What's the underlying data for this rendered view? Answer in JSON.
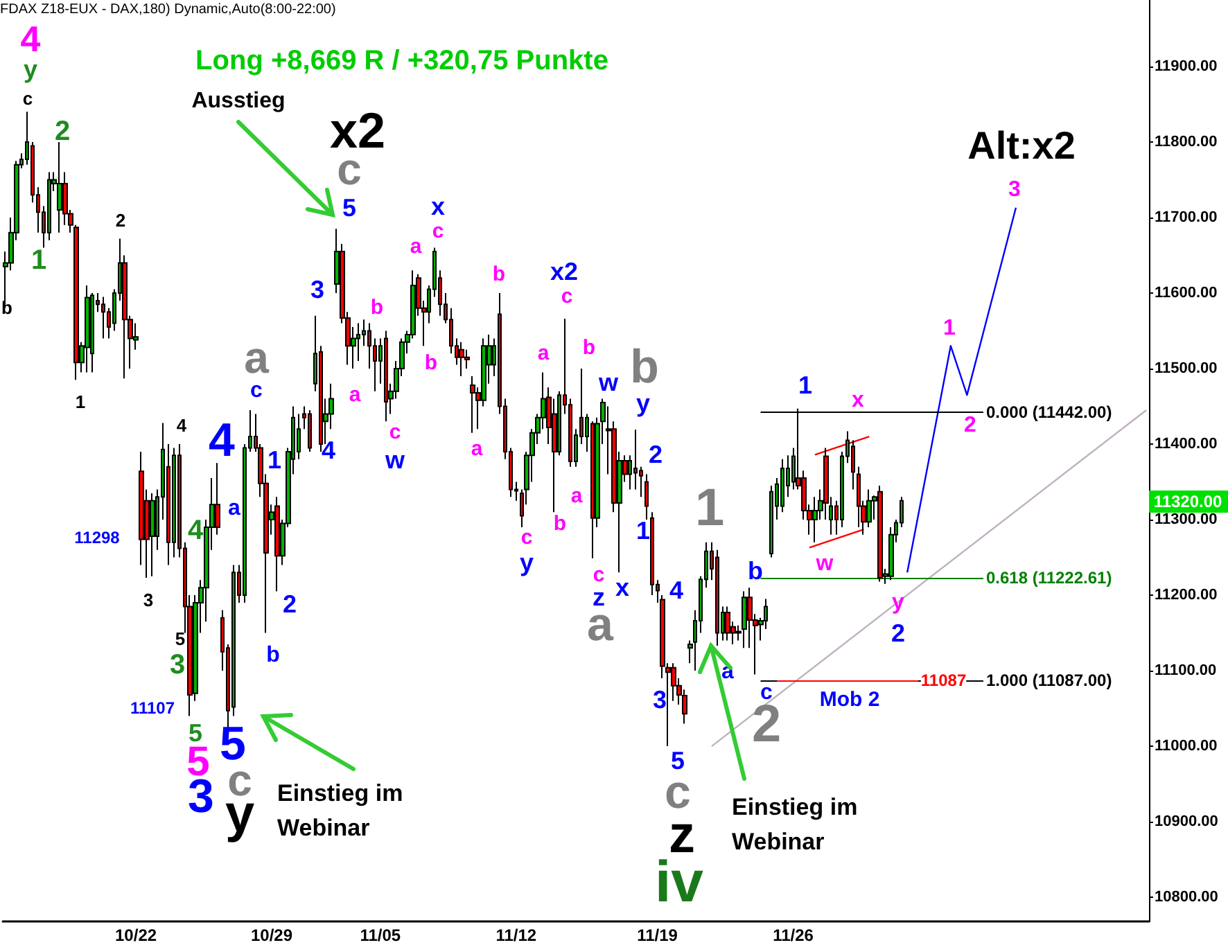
{
  "chart_data": {
    "type": "candlestick",
    "title": "Long +8,669 R / +320,75 Punkte",
    "subtitle": "FDAX Z18-EUX - DAX,180) Dynamic,Auto(8:00-22:00)",
    "categories": [
      null,
      null,
      null,
      null,
      null,
      null,
      null,
      null,
      null,
      null,
      null,
      null,
      null,
      null,
      null,
      null,
      null,
      null,
      null,
      null,
      null,
      null,
      null,
      null,
      "10/22",
      null,
      null,
      null,
      null,
      null,
      null,
      null,
      null,
      null,
      null,
      null,
      null,
      null,
      null,
      null,
      null,
      null,
      null,
      null,
      null,
      null,
      null,
      null,
      null,
      "10/29",
      null,
      null,
      null,
      null,
      null,
      null,
      null,
      null,
      null,
      null,
      null,
      null,
      null,
      null,
      null,
      null,
      null,
      null,
      null,
      "11/05",
      null,
      null,
      null,
      null,
      null,
      null,
      null,
      null,
      null,
      null,
      null,
      null,
      null,
      null,
      null,
      null,
      null,
      null,
      null,
      null,
      null,
      null,
      null,
      null,
      "11/12",
      null,
      null,
      null,
      null,
      null,
      null,
      null,
      null,
      null,
      null,
      null,
      null,
      null,
      null,
      null,
      null,
      null,
      null,
      null,
      null,
      null,
      null,
      null,
      null,
      null,
      "11/19",
      null,
      null,
      null,
      null,
      null,
      null,
      null,
      null,
      null,
      null,
      null,
      null,
      null,
      null,
      null,
      null,
      null,
      null,
      null,
      null,
      null,
      null,
      null,
      null,
      "11/26",
      null,
      null,
      null,
      null,
      null,
      null,
      null,
      null,
      null,
      null,
      null,
      null,
      null,
      null,
      null,
      null,
      null,
      null,
      null,
      null,
      null,
      null,
      null,
      null,
      null,
      null,
      null,
      null,
      null,
      null,
      null,
      null,
      null,
      null,
      null,
      null,
      null,
      null,
      null,
      null,
      null,
      null,
      null,
      null,
      null,
      null,
      null,
      null,
      null,
      null,
      null,
      null,
      null,
      null,
      null,
      null,
      null,
      null,
      null,
      null,
      null,
      null,
      null,
      null,
      null
    ],
    "colors": [
      "#00b400",
      "#ff0000"
    ],
    "series": [
      {
        "ohlc": [
          [
            11635,
            11655,
            11580,
            11640
          ],
          [
            11640,
            11700,
            11630,
            11680
          ],
          [
            11680,
            11775,
            11670,
            11770
          ],
          [
            11770,
            11785,
            11765,
            11777
          ],
          [
            11777,
            11840,
            11770,
            11800
          ],
          [
            11795,
            11800,
            11720,
            11730
          ],
          [
            11730,
            11740,
            11680,
            11707
          ],
          [
            11707,
            11715,
            11660,
            11680
          ],
          [
            11680,
            11760,
            11670,
            11750
          ],
          [
            11745,
            11760,
            11735,
            11750
          ],
          [
            11710,
            11800,
            11680,
            11745
          ],
          [
            11745,
            11760,
            11690,
            11705
          ],
          [
            11705,
            11710,
            11680,
            11690
          ],
          [
            11687,
            11690,
            11485,
            11508
          ],
          [
            11508,
            11535,
            11495,
            11530
          ],
          [
            11528,
            11610,
            11495,
            11594
          ],
          [
            11520,
            11600,
            11495,
            11597
          ],
          [
            11590,
            11600,
            11575,
            11585
          ],
          [
            11585,
            11595,
            11540,
            11575
          ],
          [
            11575,
            11580,
            11540,
            11555
          ],
          [
            11560,
            11605,
            11550,
            11600
          ],
          [
            11600,
            11672,
            11590,
            11640
          ],
          [
            11640,
            11650,
            11487,
            11565
          ],
          [
            11565,
            11570,
            11500,
            11540
          ],
          [
            11538,
            11560,
            11525,
            11542
          ],
          [
            11364,
            11390,
            11240,
            11274
          ],
          [
            11325,
            11340,
            11223,
            11274
          ],
          [
            11278,
            11335,
            11225,
            11325
          ],
          [
            11278,
            11340,
            11260,
            11330
          ],
          [
            11330,
            11428,
            11300,
            11393
          ],
          [
            11370,
            11400,
            11240,
            11270
          ],
          [
            11270,
            11395,
            11250,
            11385
          ],
          [
            11385,
            11400,
            11250,
            11262
          ],
          [
            11262,
            11270,
            11150,
            11185
          ],
          [
            11185,
            11200,
            11040,
            11068
          ],
          [
            11070,
            11200,
            11060,
            11190
          ],
          [
            11190,
            11220,
            11150,
            11210
          ],
          [
            11210,
            11300,
            11165,
            11290
          ],
          [
            11290,
            11355,
            11260,
            11320
          ],
          [
            11320,
            11375,
            11280,
            11290
          ],
          [
            11170,
            11180,
            11100,
            11125
          ],
          [
            11130,
            11135,
            11020,
            11047
          ],
          [
            11052,
            11240,
            11040,
            11230
          ],
          [
            11230,
            11240,
            11190,
            11200
          ],
          [
            11200,
            11400,
            11190,
            11395
          ],
          [
            11395,
            11445,
            11390,
            11410
          ],
          [
            11410,
            11440,
            11390,
            11395
          ],
          [
            11395,
            11400,
            11330,
            11348
          ],
          [
            11348,
            11360,
            11150,
            11256
          ],
          [
            11300,
            11320,
            11280,
            11310
          ],
          [
            11318,
            11330,
            11205,
            11252
          ],
          [
            11252,
            11300,
            11240,
            11295
          ],
          [
            11295,
            11395,
            11290,
            11390
          ],
          [
            11380,
            11450,
            11360,
            11435
          ],
          [
            11390,
            11440,
            11380,
            11420
          ],
          [
            11440,
            11450,
            11420,
            11435
          ],
          [
            11440,
            11445,
            11390,
            11395
          ],
          [
            11480,
            11570,
            11470,
            11520
          ],
          [
            11522,
            11530,
            11390,
            11400
          ],
          [
            11430,
            11460,
            11400,
            11440
          ],
          [
            11440,
            11480,
            11420,
            11460
          ],
          [
            11612,
            11685,
            11600,
            11655
          ],
          [
            11655,
            11665,
            11560,
            11567
          ],
          [
            11567,
            11575,
            11505,
            11530
          ],
          [
            11530,
            11555,
            11500,
            11540
          ],
          [
            11540,
            11560,
            11510,
            11545
          ],
          [
            11545,
            11565,
            11530,
            11550
          ],
          [
            11550,
            11560,
            11500,
            11530
          ],
          [
            11530,
            11540,
            11470,
            11510
          ],
          [
            11510,
            11540,
            11480,
            11530
          ],
          [
            11540,
            11550,
            11430,
            11456
          ],
          [
            11460,
            11480,
            11440,
            11470
          ],
          [
            11470,
            11510,
            11460,
            11500
          ],
          [
            11500,
            11540,
            11490,
            11535
          ],
          [
            11535,
            11550,
            11520,
            11545
          ],
          [
            11545,
            11630,
            11540,
            11610
          ],
          [
            11620,
            11625,
            11570,
            11580
          ],
          [
            11580,
            11590,
            11530,
            11575
          ],
          [
            11575,
            11610,
            11560,
            11605
          ],
          [
            11605,
            11660,
            11595,
            11655
          ],
          [
            11620,
            11630,
            11570,
            11585
          ],
          [
            11585,
            11600,
            11560,
            11565
          ],
          [
            11565,
            11580,
            11520,
            11530
          ],
          [
            11530,
            11540,
            11505,
            11515
          ],
          [
            11525,
            11535,
            11490,
            11515
          ],
          [
            11515,
            11525,
            11500,
            11512
          ],
          [
            11478,
            11490,
            11415,
            11468
          ],
          [
            11468,
            11475,
            11420,
            11458
          ],
          [
            11458,
            11540,
            11450,
            11530
          ],
          [
            11505,
            11545,
            11480,
            11530
          ],
          [
            11505,
            11540,
            11490,
            11530
          ],
          [
            11572,
            11600,
            11440,
            11450
          ],
          [
            11450,
            11460,
            11380,
            11390
          ],
          [
            11390,
            11395,
            11330,
            11340
          ],
          [
            11340,
            11350,
            11325,
            11338
          ],
          [
            11335,
            11340,
            11290,
            11305
          ],
          [
            11340,
            11390,
            11320,
            11385
          ],
          [
            11385,
            11420,
            11350,
            11415
          ],
          [
            11415,
            11440,
            11400,
            11435
          ],
          [
            11435,
            11495,
            11420,
            11460
          ],
          [
            11462,
            11475,
            11400,
            11422
          ],
          [
            11440,
            11460,
            11310,
            11390
          ],
          [
            11390,
            11470,
            11385,
            11465
          ],
          [
            11465,
            11566,
            11440,
            11452
          ],
          [
            11452,
            11460,
            11370,
            11377
          ],
          [
            11377,
            11420,
            11370,
            11412
          ],
          [
            11435,
            11500,
            11400,
            11410
          ],
          [
            11410,
            11440,
            11390,
            11435
          ],
          [
            11427,
            11430,
            11249,
            11302
          ],
          [
            11302,
            11435,
            11290,
            11427
          ],
          [
            11430,
            11460,
            11400,
            11455
          ],
          [
            11420,
            11450,
            11360,
            11418
          ],
          [
            11420,
            11430,
            11310,
            11322
          ],
          [
            11322,
            11390,
            11230,
            11378
          ],
          [
            11378,
            11385,
            11350,
            11360
          ],
          [
            11360,
            11385,
            11340,
            11378
          ],
          [
            11368,
            11419,
            11340,
            11362
          ],
          [
            11365,
            11370,
            11330,
            11358
          ],
          [
            11350,
            11360,
            11300,
            11318
          ],
          [
            11302,
            11310,
            11200,
            11214
          ],
          [
            11214,
            11220,
            11190,
            11206
          ],
          [
            11194,
            11200,
            11090,
            11106
          ],
          [
            11104,
            11110,
            11000,
            11098
          ],
          [
            11104,
            11110,
            11060,
            11080
          ],
          [
            11080,
            11090,
            11055,
            11068
          ],
          [
            11067,
            11075,
            11030,
            11043
          ],
          [
            11130,
            11140,
            11110,
            11135
          ],
          [
            11138,
            11180,
            11100,
            11166
          ],
          [
            11166,
            11225,
            11150,
            11221
          ],
          [
            11221,
            11270,
            11210,
            11258
          ],
          [
            11258,
            11270,
            11220,
            11235
          ],
          [
            11250,
            11260,
            11133,
            11150
          ],
          [
            11150,
            11185,
            11140,
            11177
          ],
          [
            11177,
            11185,
            11140,
            11150
          ],
          [
            11158,
            11165,
            11135,
            11150
          ],
          [
            11150,
            11160,
            11140,
            11152
          ],
          [
            11155,
            11205,
            11130,
            11197
          ],
          [
            11197,
            11210,
            11130,
            11167
          ],
          [
            11167,
            11175,
            11095,
            11160
          ],
          [
            11161,
            11170,
            11140,
            11166
          ],
          [
            11166,
            11195,
            11155,
            11185
          ],
          [
            11255,
            11345,
            11250,
            11337
          ],
          [
            11318,
            11355,
            11300,
            11347
          ],
          [
            11318,
            11380,
            11310,
            11368
          ],
          [
            11345,
            11385,
            11330,
            11368
          ],
          [
            11350,
            11395,
            11340,
            11384
          ],
          [
            11355,
            11447,
            11340,
            11345
          ],
          [
            11355,
            11365,
            11300,
            11312
          ],
          [
            11312,
            11320,
            11280,
            11300
          ],
          [
            11300,
            11330,
            11270,
            11312
          ],
          [
            11312,
            11340,
            11300,
            11325
          ],
          [
            11384,
            11395,
            11300,
            11322
          ],
          [
            11300,
            11330,
            11280,
            11318
          ],
          [
            11318,
            11325,
            11280,
            11300
          ],
          [
            11300,
            11390,
            11290,
            11384
          ],
          [
            11384,
            11417,
            11375,
            11405
          ],
          [
            11397,
            11405,
            11340,
            11363
          ],
          [
            11360,
            11370,
            11290,
            11318
          ],
          [
            11318,
            11325,
            11280,
            11297
          ],
          [
            11297,
            11340,
            11290,
            11325
          ],
          [
            11325,
            11332,
            11300,
            11330
          ],
          [
            11337,
            11345,
            11218,
            11223
          ],
          [
            11225,
            11235,
            11215,
            11228
          ],
          [
            11225,
            11290,
            11220,
            11280
          ],
          [
            11280,
            11300,
            11270,
            11296
          ],
          [
            11296,
            11330,
            11290,
            11325
          ],
          null,
          null,
          null,
          null,
          null,
          null,
          null,
          null,
          null,
          null,
          null,
          null,
          null,
          null,
          null,
          null,
          null,
          null,
          null,
          null,
          null,
          null,
          null,
          null,
          null,
          null,
          null,
          null,
          null,
          null,
          null,
          null,
          null,
          null,
          null,
          null,
          null,
          null,
          null,
          null,
          null,
          null,
          null,
          null,
          null
        ]
      },
      {
        "type": "line",
        "color": "#0000ff",
        "values": [
          null,
          null,
          null,
          null,
          null,
          null,
          null,
          null,
          null,
          null,
          null,
          null,
          null,
          null,
          null,
          null,
          null,
          null,
          null,
          null,
          null,
          null,
          null,
          null,
          null,
          null,
          null,
          null,
          null,
          null,
          null,
          null,
          null,
          null,
          null,
          null,
          null,
          null,
          null,
          null,
          null,
          null,
          null,
          null,
          null,
          null,
          null,
          null,
          null,
          null,
          null,
          null,
          null,
          null,
          null,
          null,
          null,
          null,
          null,
          null,
          null,
          null,
          null,
          null,
          null,
          null,
          null,
          null,
          null,
          null,
          null,
          null,
          null,
          null,
          null,
          null,
          null,
          null,
          null,
          null,
          null,
          null,
          null,
          null,
          null,
          null,
          null,
          null,
          null,
          null,
          null,
          null,
          null,
          null,
          null,
          null,
          null,
          null,
          null,
          null,
          null,
          null,
          null,
          null,
          null,
          null,
          null,
          null,
          null,
          null,
          null,
          null,
          null,
          null,
          null,
          null,
          null,
          null,
          null,
          null,
          null,
          null,
          null,
          null,
          null,
          null,
          null,
          null,
          null,
          null,
          null,
          null,
          null,
          null,
          null,
          null,
          null,
          null,
          null,
          null,
          null,
          null,
          null,
          null,
          null,
          null,
          null,
          null,
          null,
          null,
          null,
          null,
          null,
          null,
          null,
          null,
          null,
          null,
          null,
          null,
          null,
          null,
          null,
          null,
          null,
          null,
          11230,
          null,
          null,
          null,
          null,
          null,
          null,
          null,
          11530,
          null,
          null,
          11465,
          null,
          null,
          null,
          null,
          null,
          null,
          null,
          null,
          11713,
          null,
          null,
          null,
          null,
          null,
          null,
          null,
          null,
          null,
          null,
          null,
          null,
          null,
          null,
          null,
          null,
          null,
          null,
          null,
          null,
          null,
          null,
          null,
          null
        ]
      },
      {
        "type": "line",
        "color": "#c0b0c0",
        "values": [
          null,
          null,
          null,
          null,
          null,
          null,
          null,
          null,
          null,
          null,
          null,
          null,
          null,
          null,
          null,
          null,
          null,
          null,
          null,
          null,
          null,
          null,
          null,
          null,
          null,
          null,
          null,
          null,
          null,
          null,
          null,
          null,
          null,
          null,
          null,
          null,
          null,
          null,
          null,
          null,
          null,
          null,
          null,
          null,
          null,
          null,
          null,
          null,
          null,
          null,
          null,
          null,
          null,
          null,
          null,
          null,
          null,
          null,
          null,
          null,
          null,
          null,
          null,
          null,
          null,
          null,
          null,
          null,
          null,
          null,
          null,
          null,
          null,
          null,
          null,
          null,
          null,
          null,
          null,
          null,
          null,
          null,
          null,
          null,
          null,
          null,
          null,
          null,
          null,
          null,
          null,
          null,
          null,
          null,
          null,
          null,
          null,
          null,
          null,
          null,
          null,
          null,
          null,
          null,
          null,
          null,
          null,
          null,
          null,
          null,
          null,
          null,
          null,
          null,
          null,
          null,
          null,
          null,
          null,
          null,
          null,
          null,
          null,
          null,
          null,
          null,
          null,
          null,
          null,
          null,
          11000,
          null,
          null,
          null,
          null,
          null,
          null,
          null,
          null,
          null,
          null,
          null,
          null,
          null,
          null,
          null,
          null,
          null,
          null,
          null,
          null,
          null,
          null,
          null,
          null,
          null,
          null,
          null,
          null,
          null,
          null,
          null,
          null,
          null,
          null,
          null,
          null,
          null,
          null,
          null,
          null,
          null,
          null,
          null,
          null,
          null,
          null,
          null,
          null,
          null,
          null,
          null,
          null,
          null,
          null,
          null,
          null,
          null,
          null,
          null,
          null,
          null,
          null,
          null,
          null,
          null,
          null,
          null,
          null,
          null,
          null,
          null,
          null,
          null,
          null,
          null,
          null,
          null,
          null,
          null,
          11445
        ]
      },
      {
        "type": "line",
        "color": "#ff0000",
        "values": [
          null,
          null,
          null,
          null,
          null,
          null,
          null,
          null,
          null,
          null,
          null,
          null,
          null,
          null,
          null,
          null,
          null,
          null,
          null,
          null,
          null,
          null,
          null,
          null,
          null,
          null,
          null,
          null,
          null,
          null,
          null,
          null,
          null,
          null,
          null,
          null,
          null,
          null,
          null,
          null,
          null,
          null,
          null,
          null,
          null,
          null,
          null,
          null,
          null,
          null,
          null,
          null,
          null,
          null,
          null,
          null,
          null,
          null,
          null,
          null,
          null,
          null,
          null,
          null,
          null,
          null,
          null,
          null,
          null,
          null,
          null,
          null,
          null,
          null,
          null,
          null,
          null,
          null,
          null,
          null,
          null,
          null,
          null,
          null,
          null,
          null,
          null,
          null,
          null,
          null,
          null,
          null,
          null,
          null,
          null,
          null,
          null,
          null,
          null,
          null,
          null,
          null,
          null,
          null,
          null,
          null,
          null,
          null,
          null,
          null,
          null,
          null,
          null,
          null,
          null,
          null,
          null,
          null,
          null,
          null,
          null,
          null,
          null,
          null,
          null,
          null,
          null,
          null,
          null,
          null,
          null,
          null,
          null,
          null,
          null,
          null,
          null,
          null,
          null,
          null,
          null,
          null,
          null,
          null,
          null,
          null,
          null,
          null,
          null,
          11386,
          null,
          null,
          null,
          null,
          null,
          null,
          null,
          null,
          null,
          11410,
          null,
          null,
          null,
          null,
          null,
          null,
          null,
          null,
          null,
          null,
          null,
          null,
          null,
          null,
          null,
          null,
          null,
          null,
          null,
          null,
          null,
          null,
          null,
          null,
          null,
          null,
          null,
          null,
          null,
          null,
          null,
          null,
          null,
          null,
          null,
          null,
          null,
          null,
          null,
          null,
          null,
          null,
          null,
          null,
          null,
          null,
          null,
          null,
          null,
          null,
          null
        ]
      },
      {
        "type": "line",
        "color": "#ff0000",
        "values": [
          null,
          null,
          null,
          null,
          null,
          null,
          null,
          null,
          null,
          null,
          null,
          null,
          null,
          null,
          null,
          null,
          null,
          null,
          null,
          null,
          null,
          null,
          null,
          null,
          null,
          null,
          null,
          null,
          null,
          null,
          null,
          null,
          null,
          null,
          null,
          null,
          null,
          null,
          null,
          null,
          null,
          null,
          null,
          null,
          null,
          null,
          null,
          null,
          null,
          null,
          null,
          null,
          null,
          null,
          null,
          null,
          null,
          null,
          null,
          null,
          null,
          null,
          null,
          null,
          null,
          null,
          null,
          null,
          null,
          null,
          null,
          null,
          null,
          null,
          null,
          null,
          null,
          null,
          null,
          null,
          null,
          null,
          null,
          null,
          null,
          null,
          null,
          null,
          null,
          null,
          null,
          null,
          null,
          null,
          null,
          null,
          null,
          null,
          null,
          null,
          null,
          null,
          null,
          null,
          null,
          null,
          null,
          null,
          null,
          null,
          null,
          null,
          null,
          null,
          null,
          null,
          null,
          null,
          null,
          null,
          null,
          null,
          null,
          null,
          null,
          null,
          null,
          null,
          null,
          null,
          null,
          null,
          null,
          null,
          null,
          null,
          null,
          null,
          null,
          null,
          null,
          null,
          null,
          null,
          null,
          null,
          null,
          null,
          11263,
          null,
          null,
          null,
          null,
          null,
          null,
          null,
          null,
          null,
          11287,
          null,
          null,
          null,
          null,
          null,
          null,
          null,
          null,
          null,
          null,
          null,
          null,
          null,
          null,
          null,
          null,
          null,
          null,
          null,
          null,
          null,
          null,
          null,
          null,
          null,
          null,
          null,
          null,
          null,
          null,
          null,
          null,
          null,
          null,
          null,
          null,
          null,
          null,
          null,
          null,
          null,
          null,
          null,
          null,
          null,
          null,
          null,
          null,
          null,
          null,
          null,
          null
        ]
      }
    ],
    "ylim": [
      10768,
      11988
    ],
    "yticks": [
      {
        "value": 10800,
        "label": "10800.00"
      },
      {
        "value": 10900,
        "label": "10900.00"
      },
      {
        "value": 11000,
        "label": "11000.00"
      },
      {
        "value": 11100,
        "label": "11100.00"
      },
      {
        "value": 11200,
        "label": "11200.00"
      },
      {
        "value": 11300,
        "label": "11300.00"
      },
      {
        "value": 11400,
        "label": "11400.00"
      },
      {
        "value": 11500,
        "label": "11500.00"
      },
      {
        "value": 11600,
        "label": "11600.00"
      },
      {
        "value": 11700,
        "label": "11700.00"
      },
      {
        "value": 11800,
        "label": "11800.00"
      },
      {
        "value": 11900,
        "label": "11900.00"
      }
    ],
    "ref_lines": [
      {
        "axis": "y",
        "value": 11442,
        "label": "0.000 (11442.00)",
        "color": "#000000"
      },
      {
        "axis": "y",
        "value": 11222.61,
        "label": "0.618 (11222.61)",
        "color": "#008000"
      },
      {
        "axis": "y",
        "value": 11087,
        "label": "1.000 (11087.00)",
        "color": "#000000"
      },
      {
        "axis": "y",
        "value": 11087,
        "label": "11087",
        "color": "#ff0000"
      }
    ],
    "annotations": [
      "4",
      "y",
      "c",
      "2",
      "1",
      "b",
      "2",
      "1",
      "Ausstieg",
      "x2",
      "c",
      "5",
      "3",
      "a",
      "c",
      "x",
      "b",
      "b",
      "a",
      "c",
      "4",
      "1",
      "4",
      "a",
      "c",
      "w",
      "a",
      "2",
      "b",
      "4",
      "11298",
      "4",
      "3",
      "5",
      "3",
      "11107",
      "5",
      "5",
      "3",
      "5",
      "c",
      "y",
      "Einstieg im Webinar",
      "b",
      "c",
      "x2",
      "a",
      "a",
      "b",
      "c",
      "y",
      "b",
      "a",
      "w",
      "b",
      "y",
      "2",
      "1",
      "c",
      "z",
      "x",
      "a",
      "4",
      "3",
      "5",
      "c",
      "z",
      "iv",
      "1",
      "a",
      "Einstieg im Webinar",
      "c",
      "2",
      "Mob 2",
      "b",
      "w",
      "1",
      "x",
      "y",
      "2",
      "Alt:x2",
      "3",
      "1",
      "2",
      "11320.00"
    ]
  }
}
